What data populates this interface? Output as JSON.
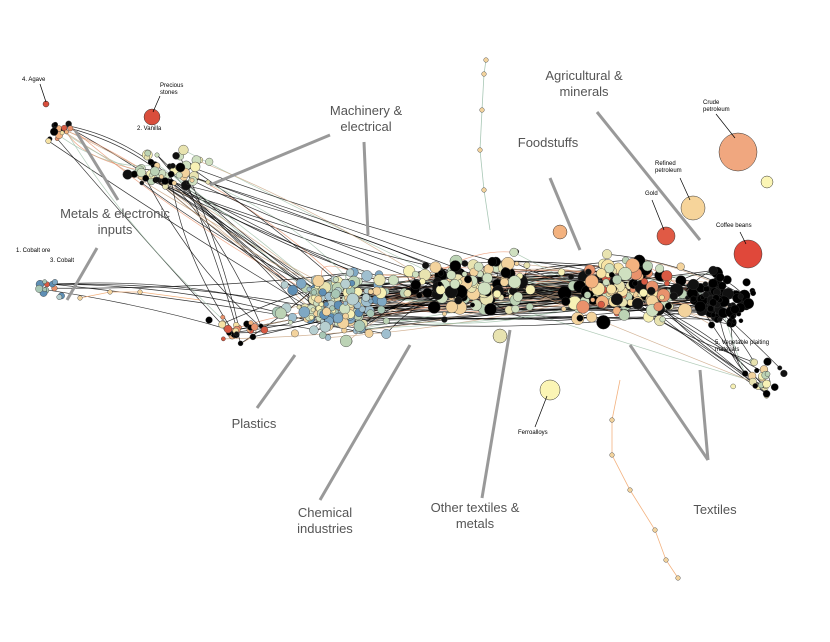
{
  "groups": [
    {
      "label": "Agricultural & minerals"
    },
    {
      "label": "Machinery & electrical"
    },
    {
      "label": "Foodstuffs"
    },
    {
      "label": "Metals & electronic inputs"
    },
    {
      "label": "Plastics"
    },
    {
      "label": "Chemical industries"
    },
    {
      "label": "Other textiles & metals"
    },
    {
      "label": "Textiles"
    }
  ],
  "nodes": [
    {
      "label": "4. Agave"
    },
    {
      "label": "Precious stones"
    },
    {
      "label": "2. Vanilla"
    },
    {
      "label": "Crude petroleum"
    },
    {
      "label": "Refined petroleum"
    },
    {
      "label": "Gold"
    },
    {
      "label": "Coffee beans"
    },
    {
      "label": "1. Cobalt ore"
    },
    {
      "label": "3. Cobalt"
    },
    {
      "label": "5. Vegetable plaiting materials"
    },
    {
      "label": "Ferroalloys"
    }
  ]
}
